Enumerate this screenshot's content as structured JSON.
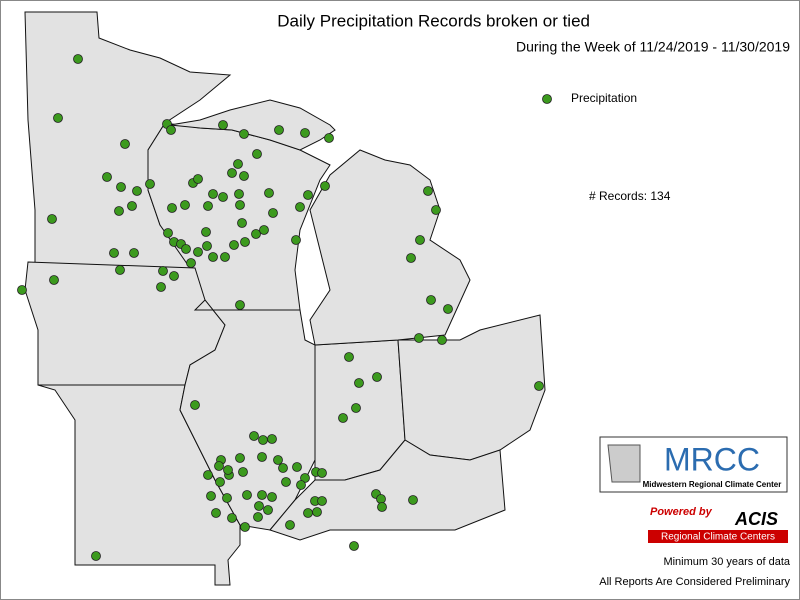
{
  "header": {
    "title": "Daily Precipitation Records broken or tied",
    "subtitle": "During the Week of 11/24/2019 - 11/30/2019"
  },
  "legend": {
    "label": "Precipitation",
    "color": "#3c9a1e"
  },
  "records": "# Records: 134",
  "logos": {
    "mrcc": "MRCC",
    "mrcc_name": "Midwestern Regional Climate Center",
    "powered": "Powered by",
    "acis": "ACIS",
    "rcc": "Regional Climate Centers"
  },
  "footer": {
    "minimum": "Minimum 30 years of data",
    "note": "All Reports Are Considered Preliminary"
  }
}
